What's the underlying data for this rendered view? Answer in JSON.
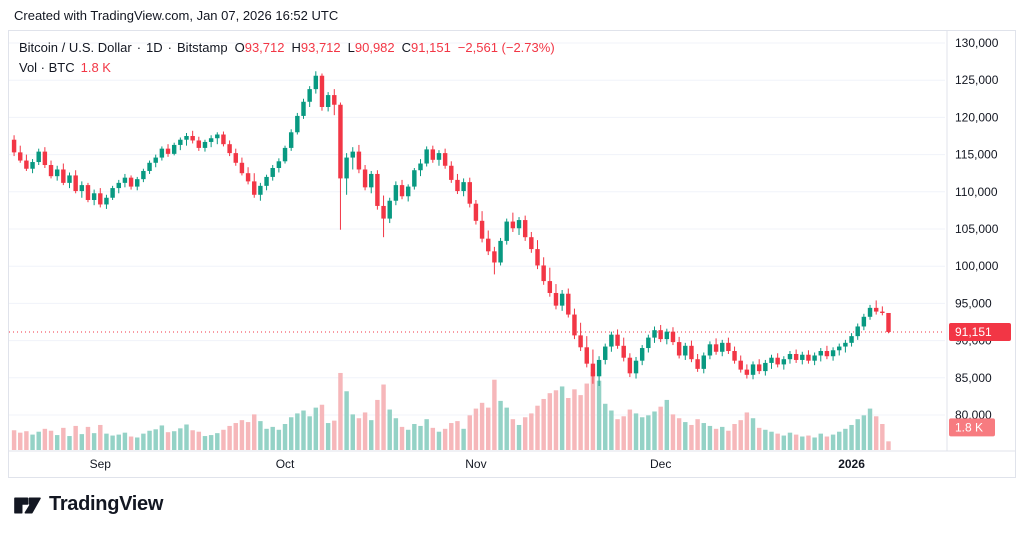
{
  "header": {
    "watermark": "Created with TradingView.com, Jan 07, 2026 16:52 UTC"
  },
  "legend": {
    "symbol": "Bitcoin / U.S. Dollar",
    "separator": "·",
    "interval": "1D",
    "exchange": "Bitstamp",
    "ohlc": [
      {
        "label": "O",
        "value": "93,712"
      },
      {
        "label": "H",
        "value": "93,712"
      },
      {
        "label": "L",
        "value": "90,982"
      },
      {
        "label": "C",
        "value": "91,151"
      }
    ],
    "change": "−2,561 (−2.73%)",
    "volume_label": "Vol · BTC",
    "volume_value": "1.8 K"
  },
  "footer": {
    "brand": "TradingView"
  },
  "colors": {
    "up": "#089981",
    "down": "#f23645",
    "vol_up": "#94d2c6",
    "vol_down": "#f6b7ba",
    "grid": "#f0f3fa",
    "axis_text": "#131722",
    "axis_line": "#e0e3eb",
    "price_badge_bg": "#f23645",
    "volume_badge_bg": "#f77b80",
    "badge_text": "#ffffff",
    "last_price_line": "#f23645"
  },
  "chart_data": {
    "type": "candlestick",
    "symbol": "BTCUSD",
    "title": "Bitcoin / U.S. Dollar · 1D · Bitstamp",
    "legend_note": "grid on, price scale right, volume overlay bottom",
    "right_offset_bars": 9,
    "volume_unit": "K BTC",
    "last": {
      "price": 91151,
      "price_label": "91,151",
      "volume": 1.8,
      "volume_label": "1.8 K"
    },
    "price_axis": {
      "min": 80000,
      "max": 130000,
      "step": 5000,
      "labels": [
        {
          "text": "130,000",
          "value": 130000
        },
        {
          "text": "125,000",
          "value": 125000
        },
        {
          "text": "120,000",
          "value": 120000
        },
        {
          "text": "115,000",
          "value": 115000
        },
        {
          "text": "110,000",
          "value": 110000
        },
        {
          "text": "105,000",
          "value": 105000
        },
        {
          "text": "100,000",
          "value": 100000
        },
        {
          "text": "95,000",
          "value": 95000
        },
        {
          "text": "90,000",
          "value": 90000
        },
        {
          "text": "85,000",
          "value": 85000
        },
        {
          "text": "80,000",
          "value": 80000
        }
      ]
    },
    "time_axis": {
      "labels": [
        {
          "text": "Sep",
          "index": 14,
          "bold": false
        },
        {
          "text": "Oct",
          "index": 44,
          "bold": false
        },
        {
          "text": "Nov",
          "index": 75,
          "bold": false
        },
        {
          "text": "Dec",
          "index": 105,
          "bold": false
        },
        {
          "text": "2026",
          "index": 136,
          "bold": true
        }
      ]
    },
    "columns": [
      "open",
      "high",
      "low",
      "close",
      "volume"
    ],
    "candles": [
      [
        117000,
        117600,
        114800,
        115300,
        4.1
      ],
      [
        115300,
        116200,
        113900,
        114200,
        3.6
      ],
      [
        114200,
        115000,
        112800,
        113100,
        3.9
      ],
      [
        113100,
        114400,
        112500,
        114000,
        3.2
      ],
      [
        114000,
        115800,
        113600,
        115400,
        3.8
      ],
      [
        115400,
        116000,
        113200,
        113600,
        4.4
      ],
      [
        113600,
        114200,
        111800,
        112100,
        4.0
      ],
      [
        112100,
        113500,
        111500,
        113000,
        3.1
      ],
      [
        113000,
        113800,
        110900,
        111200,
        4.6
      ],
      [
        111200,
        112600,
        110500,
        112200,
        2.9
      ],
      [
        112200,
        112900,
        109800,
        110100,
        5.0
      ],
      [
        110100,
        111400,
        109200,
        110900,
        3.3
      ],
      [
        110900,
        111200,
        108600,
        108900,
        4.8
      ],
      [
        108900,
        110300,
        108200,
        109800,
        3.5
      ],
      [
        109800,
        110500,
        107900,
        108300,
        5.2
      ],
      [
        108300,
        109600,
        107700,
        109200,
        3.4
      ],
      [
        109200,
        110800,
        108900,
        110500,
        3.0
      ],
      [
        110500,
        111600,
        109800,
        111200,
        3.2
      ],
      [
        111200,
        112400,
        110600,
        111900,
        3.6
      ],
      [
        111900,
        112200,
        110300,
        110700,
        2.8
      ],
      [
        110700,
        112000,
        110200,
        111700,
        2.6
      ],
      [
        111700,
        113100,
        111300,
        112800,
        3.4
      ],
      [
        112800,
        114200,
        112400,
        113900,
        4.0
      ],
      [
        113900,
        115000,
        113300,
        114600,
        4.3
      ],
      [
        114600,
        116100,
        114200,
        115800,
        5.1
      ],
      [
        115800,
        116400,
        114700,
        115100,
        3.7
      ],
      [
        115100,
        116600,
        114900,
        116300,
        3.9
      ],
      [
        116300,
        117300,
        115600,
        117000,
        4.5
      ],
      [
        117000,
        117900,
        116200,
        117500,
        5.3
      ],
      [
        117500,
        118200,
        116500,
        116900,
        4.1
      ],
      [
        116900,
        117400,
        115500,
        115900,
        3.8
      ],
      [
        115900,
        117000,
        115400,
        116700,
        2.9
      ],
      [
        116700,
        117600,
        116000,
        117200,
        3.1
      ],
      [
        117200,
        118000,
        116400,
        117700,
        3.5
      ],
      [
        117700,
        118100,
        116100,
        116400,
        4.2
      ],
      [
        116400,
        116900,
        114800,
        115200,
        5.0
      ],
      [
        115200,
        115800,
        113500,
        113900,
        5.6
      ],
      [
        113900,
        114600,
        112200,
        112500,
        6.2
      ],
      [
        112500,
        113300,
        111000,
        111400,
        5.8
      ],
      [
        111400,
        112500,
        109200,
        109600,
        7.4
      ],
      [
        109600,
        111200,
        108800,
        110800,
        6.0
      ],
      [
        110800,
        112300,
        110200,
        112000,
        4.4
      ],
      [
        112000,
        113600,
        111500,
        113200,
        4.8
      ],
      [
        113200,
        114500,
        112600,
        114100,
        4.2
      ],
      [
        114100,
        116200,
        113800,
        115900,
        5.4
      ],
      [
        115900,
        118400,
        115500,
        118000,
        6.8
      ],
      [
        118000,
        120600,
        117700,
        120200,
        7.6
      ],
      [
        120200,
        122500,
        119800,
        122100,
        8.2
      ],
      [
        122100,
        124200,
        121400,
        123800,
        7.0
      ],
      [
        123800,
        126200,
        123200,
        125600,
        8.8
      ],
      [
        125600,
        125900,
        120900,
        121400,
        9.4
      ],
      [
        121400,
        123400,
        120800,
        123000,
        5.6
      ],
      [
        123000,
        123800,
        120300,
        121700,
        6.1
      ],
      [
        121700,
        122000,
        104900,
        111800,
        16.0
      ],
      [
        111800,
        115200,
        109600,
        114600,
        12.2
      ],
      [
        114600,
        116000,
        113000,
        115400,
        7.4
      ],
      [
        115400,
        116300,
        112500,
        113000,
        6.6
      ],
      [
        113000,
        113600,
        110200,
        110600,
        7.8
      ],
      [
        110600,
        112800,
        109800,
        112400,
        6.2
      ],
      [
        112400,
        112900,
        107600,
        108100,
        10.4
      ],
      [
        108100,
        109500,
        103900,
        106400,
        13.6
      ],
      [
        106400,
        109200,
        105800,
        108800,
        8.4
      ],
      [
        108800,
        111400,
        108200,
        110900,
        6.6
      ],
      [
        110900,
        111600,
        109000,
        109400,
        4.8
      ],
      [
        109400,
        111000,
        108700,
        110700,
        4.2
      ],
      [
        110700,
        113200,
        110300,
        112900,
        5.4
      ],
      [
        112900,
        114400,
        112100,
        113800,
        5.0
      ],
      [
        113800,
        116100,
        113400,
        115700,
        6.4
      ],
      [
        115700,
        116200,
        113900,
        114300,
        4.6
      ],
      [
        114300,
        115600,
        113500,
        115200,
        3.8
      ],
      [
        115200,
        115800,
        113100,
        113500,
        4.4
      ],
      [
        113500,
        114100,
        111200,
        111600,
        5.6
      ],
      [
        111600,
        112400,
        109700,
        110100,
        6.0
      ],
      [
        110100,
        111800,
        109400,
        111300,
        4.4
      ],
      [
        111300,
        111900,
        107900,
        108400,
        7.2
      ],
      [
        108400,
        108900,
        105600,
        106100,
        8.6
      ],
      [
        106100,
        107400,
        103200,
        103700,
        9.8
      ],
      [
        103700,
        104800,
        101500,
        102000,
        8.8
      ],
      [
        102000,
        102600,
        98900,
        100500,
        14.6
      ],
      [
        100500,
        103800,
        100100,
        103400,
        10.2
      ],
      [
        103400,
        106400,
        102900,
        106000,
        8.8
      ],
      [
        106000,
        107200,
        104600,
        105100,
        6.4
      ],
      [
        105100,
        106600,
        104200,
        106200,
        5.2
      ],
      [
        106200,
        106800,
        103400,
        103900,
        6.8
      ],
      [
        103900,
        104600,
        101800,
        102300,
        7.6
      ],
      [
        102300,
        103500,
        99600,
        100100,
        9.2
      ],
      [
        100100,
        101200,
        97500,
        98000,
        10.6
      ],
      [
        98000,
        99800,
        95900,
        96400,
        11.8
      ],
      [
        96400,
        97600,
        94200,
        94700,
        12.4
      ],
      [
        94700,
        96800,
        94000,
        96300,
        13.2
      ],
      [
        96300,
        97000,
        93100,
        93500,
        10.8
      ],
      [
        93500,
        94300,
        90200,
        90700,
        12.6
      ],
      [
        90700,
        92400,
        88600,
        89100,
        11.4
      ],
      [
        89100,
        90600,
        86400,
        86900,
        13.8
      ],
      [
        86900,
        88800,
        84200,
        85200,
        16.2
      ],
      [
        85200,
        87900,
        83900,
        87400,
        14.4
      ],
      [
        87400,
        89600,
        86800,
        89200,
        9.6
      ],
      [
        89200,
        91200,
        88500,
        90800,
        8.2
      ],
      [
        90800,
        91500,
        88900,
        89300,
        6.4
      ],
      [
        89300,
        90400,
        87200,
        87700,
        7.0
      ],
      [
        87700,
        88300,
        85100,
        85600,
        8.4
      ],
      [
        85600,
        87800,
        84900,
        87300,
        7.6
      ],
      [
        87300,
        89400,
        86700,
        89000,
        6.8
      ],
      [
        89000,
        90800,
        88400,
        90400,
        7.2
      ],
      [
        90400,
        91900,
        89700,
        91400,
        8.0
      ],
      [
        91400,
        92100,
        89800,
        90200,
        9.0
      ],
      [
        90200,
        91600,
        89500,
        91200,
        10.4
      ],
      [
        91200,
        91800,
        89400,
        89800,
        7.4
      ],
      [
        89800,
        90500,
        87600,
        88000,
        6.6
      ],
      [
        88000,
        89700,
        87400,
        89300,
        5.8
      ],
      [
        89300,
        90000,
        87100,
        87500,
        5.2
      ],
      [
        87500,
        88200,
        85800,
        86200,
        6.4
      ],
      [
        86200,
        88400,
        85600,
        88000,
        5.6
      ],
      [
        88000,
        89900,
        87500,
        89500,
        5.0
      ],
      [
        89500,
        90300,
        88100,
        88500,
        4.4
      ],
      [
        88500,
        90100,
        87900,
        89700,
        4.8
      ],
      [
        89700,
        90400,
        88200,
        88600,
        4.0
      ],
      [
        88600,
        89200,
        86900,
        87300,
        5.4
      ],
      [
        87300,
        88000,
        85700,
        86100,
        6.2
      ],
      [
        86100,
        86800,
        84900,
        85400,
        7.8
      ],
      [
        85400,
        87200,
        84800,
        86800,
        6.6
      ],
      [
        86800,
        87500,
        85500,
        85900,
        4.6
      ],
      [
        85900,
        87400,
        85300,
        87000,
        4.2
      ],
      [
        87000,
        88100,
        86200,
        87700,
        3.8
      ],
      [
        87700,
        88300,
        86400,
        86800,
        3.4
      ],
      [
        86800,
        87900,
        86100,
        87500,
        3.0
      ],
      [
        87500,
        88600,
        86900,
        88200,
        3.6
      ],
      [
        88200,
        88800,
        87000,
        87400,
        3.2
      ],
      [
        87400,
        88500,
        86800,
        88100,
        2.8
      ],
      [
        88100,
        88700,
        86900,
        87300,
        3.0
      ],
      [
        87300,
        88400,
        86700,
        88000,
        2.6
      ],
      [
        88000,
        89000,
        87200,
        88600,
        3.4
      ],
      [
        88600,
        89300,
        87500,
        87900,
        2.8
      ],
      [
        87900,
        89100,
        87300,
        88700,
        3.2
      ],
      [
        88700,
        89600,
        88000,
        89200,
        3.8
      ],
      [
        89200,
        90100,
        88400,
        89700,
        4.4
      ],
      [
        89700,
        91000,
        89200,
        90600,
        5.2
      ],
      [
        90600,
        92300,
        90100,
        91900,
        6.4
      ],
      [
        91900,
        93600,
        91400,
        93200,
        7.2
      ],
      [
        93200,
        94800,
        92800,
        94400,
        8.6
      ],
      [
        94400,
        95400,
        93500,
        93900,
        7.0
      ],
      [
        93900,
        94600,
        93400,
        93712,
        5.4
      ],
      [
        93712,
        93712,
        90982,
        91151,
        1.8
      ]
    ]
  }
}
